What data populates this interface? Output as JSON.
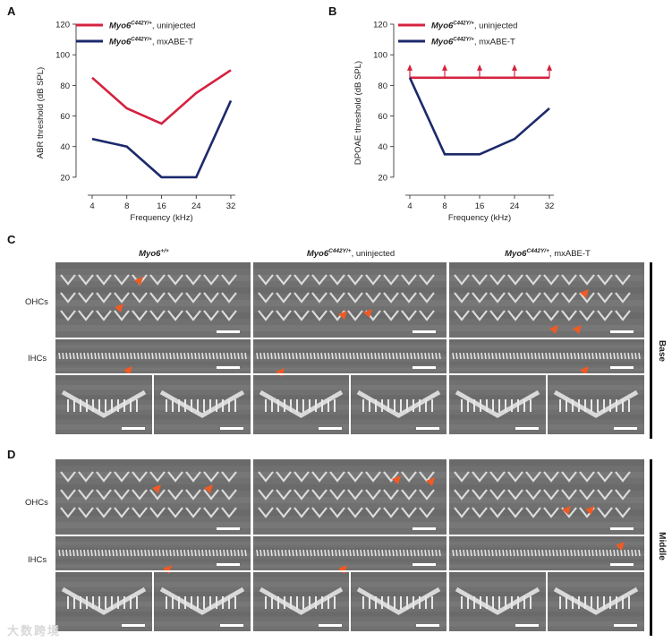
{
  "panels": {
    "A": "A",
    "B": "B",
    "C": "C",
    "D": "D"
  },
  "colors": {
    "uninjected": "#d5213f",
    "mxabe": "#1c2a6b",
    "arrow": "#f05a24",
    "axis": "#222222"
  },
  "chart_data": [
    {
      "type": "line",
      "title": "",
      "xlabel": "Frequency (kHz)",
      "ylabel": "ABR threshold (dB SPL)",
      "categories": [
        "4",
        "8",
        "16",
        "24",
        "32"
      ],
      "ylim": [
        10,
        120
      ],
      "yticks": [
        "20",
        "40",
        "60",
        "80",
        "100",
        "120"
      ],
      "series": [
        {
          "name_italic": "Myo6",
          "name_sup": "C442Y/+",
          "name_rest": ", uninjected",
          "values": [
            85,
            65,
            55,
            75,
            90
          ]
        },
        {
          "name_italic": "Myo6",
          "name_sup": "C442Y/+",
          "name_rest": ", mxABE-T",
          "values": [
            45,
            40,
            20,
            20,
            70
          ]
        }
      ]
    },
    {
      "type": "line",
      "title": "",
      "xlabel": "Frequency (kHz)",
      "ylabel": "DPOAE threshold (dB SPL)",
      "categories": [
        "4",
        "8",
        "16",
        "24",
        "32"
      ],
      "ylim": [
        10,
        120
      ],
      "yticks": [
        "20",
        "40",
        "60",
        "80",
        "100",
        "120"
      ],
      "series": [
        {
          "name_italic": "Myo6",
          "name_sup": "C442Y/+",
          "name_rest": ", uninjected",
          "values": [
            85,
            85,
            85,
            85,
            85
          ],
          "above_max_markers": true
        },
        {
          "name_italic": "Myo6",
          "name_sup": "C442Y/+",
          "name_rest": ", mxABE-T",
          "values": [
            85,
            35,
            35,
            45,
            65
          ]
        }
      ]
    }
  ],
  "micrographs": {
    "columns": [
      {
        "italic": "Myo6",
        "sup": "+/+",
        "rest": ""
      },
      {
        "italic": "Myo6",
        "sup": "C442Y/+",
        "rest": ", uninjected"
      },
      {
        "italic": "Myo6",
        "sup": "C442Y/+",
        "rest": ", mxABE-T"
      }
    ],
    "row_labels": {
      "ohc": "OHCs",
      "ihc": "IHCs"
    },
    "regions": {
      "C": "Base",
      "D": "Middle"
    }
  },
  "watermark": "大数跨境"
}
